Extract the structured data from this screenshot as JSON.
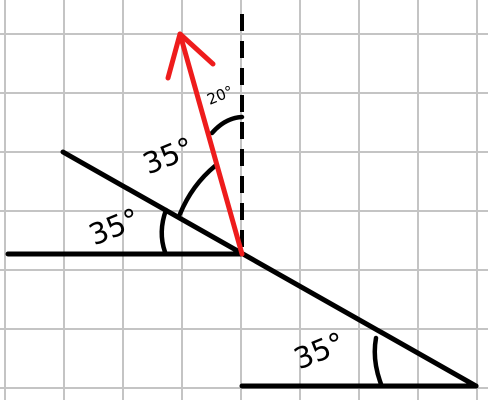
{
  "diagram": {
    "colors": {
      "background": "#ffffff",
      "grid": "#c4c4c4",
      "ink": "#000000",
      "arrow": "#ee1c1c"
    },
    "labels": {
      "angle_left": "35°",
      "angle_upper": "35°",
      "angle_bottom": "35°",
      "angle_small": "20°"
    }
  }
}
